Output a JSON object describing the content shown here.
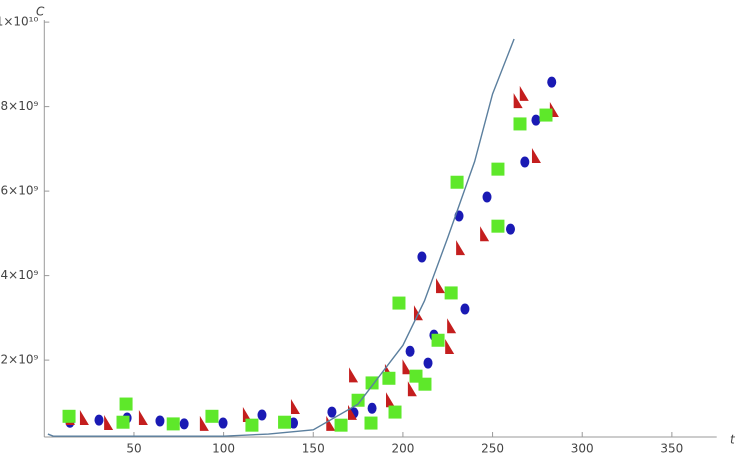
{
  "chart_data": {
    "type": "scatter",
    "xlabel": "t",
    "ylabel": "C",
    "xlim": [
      0,
      375
    ],
    "ylim": [
      180000000,
      10050000000
    ],
    "xticks": [
      50,
      100,
      150,
      200,
      250,
      300,
      350
    ],
    "yticks": [
      {
        "value": 2000000000,
        "label": "2×10⁹"
      },
      {
        "value": 4000000000,
        "label": "4×10⁹"
      },
      {
        "value": 6000000000,
        "label": "6×10⁹"
      },
      {
        "value": 8000000000,
        "label": "8×10⁹"
      },
      {
        "value": 10000000000,
        "label": "1×10¹⁰"
      }
    ],
    "grid": false,
    "series": [
      {
        "marker": "circle",
        "color": "#1a1ab4",
        "x": [
          14.3,
          30.5,
          46.2,
          64.5,
          78,
          99.7,
          121.4,
          139,
          160.4,
          172.7,
          182.8,
          204,
          210.6,
          214,
          217.3,
          231.3,
          234.6,
          246.9,
          260,
          268,
          274.2,
          283
        ],
        "values": [
          530000000,
          580000000,
          630000000,
          560000000,
          490000000,
          510000000,
          700000000,
          510000000,
          770000000,
          750000000,
          860000000,
          2210000000,
          4440000000,
          1930000000,
          2590000000,
          5410000000,
          3210000000,
          5860000000,
          5100000000,
          6690000000,
          7680000000,
          8580000000
        ]
      },
      {
        "marker": "triangle",
        "color": "#c41e1e",
        "x": [
          14.3,
          22.1,
          35.6,
          55,
          89,
          113,
          139.8,
          159.5,
          172.2,
          171.6,
          192.8,
          192.2,
          202,
          205,
          208.4,
          220.7,
          226.9,
          225.8,
          231.9,
          245.3,
          264,
          267.4,
          274.2,
          284.2
        ],
        "values": [
          630000000,
          630000000,
          510000000,
          630000000,
          490000000,
          700000000,
          890000000,
          490000000,
          1640000000,
          750000000,
          1050000000,
          1720000000,
          1830000000,
          1310000000,
          3110000000,
          3750000000,
          2800000000,
          2310000000,
          4650000000,
          4980000000,
          8130000000,
          8300000000,
          6830000000,
          7920000000
        ]
      },
      {
        "marker": "square",
        "color": "#5ee82a",
        "x": [
          13.8,
          45.6,
          43.9,
          71.9,
          93.5,
          115.8,
          134,
          165.5,
          175,
          182.8,
          182.2,
          192.2,
          195.6,
          197.8,
          207.3,
          212.3,
          219.6,
          226.9,
          230.2,
          253,
          253,
          265.3,
          279.8
        ],
        "values": [
          670000000,
          960000000,
          530000000,
          490000000,
          670000000,
          460000000,
          530000000,
          460000000,
          1050000000,
          1460000000,
          510000000,
          1570000000,
          770000000,
          3350000000,
          1620000000,
          1430000000,
          2470000000,
          3590000000,
          6210000000,
          5170000000,
          6520000000,
          7590000000,
          7800000000
        ]
      },
      {
        "marker": "line",
        "color": "#5b7f9e",
        "x": [
          2,
          5,
          50,
          100,
          125,
          150,
          175,
          200,
          212,
          225,
          240,
          250,
          262
        ],
        "values": [
          250000000,
          200000000,
          200000000,
          200000000,
          250000000,
          350000000,
          960000000,
          2350000000,
          3400000000,
          4900000000,
          6700000000,
          8300000000,
          9600000000
        ]
      }
    ]
  }
}
